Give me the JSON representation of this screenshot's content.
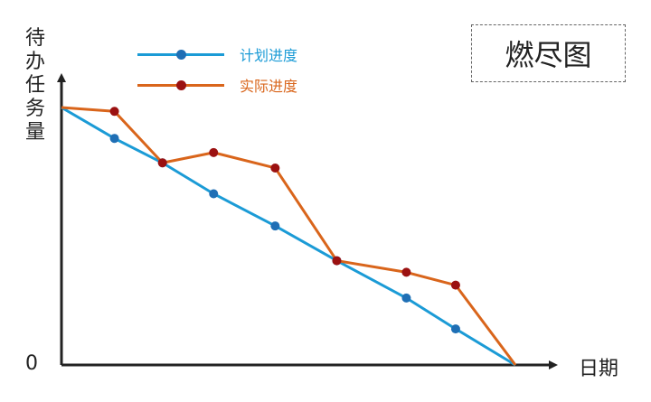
{
  "title": "燃尽图",
  "legend": [
    {
      "label": "计划进度",
      "color": "#1b9bd6"
    },
    {
      "label": "实际进度",
      "color": "#d9651b"
    }
  ],
  "chart_data": {
    "type": "line",
    "title": "燃尽图",
    "ylabel": "待办任务量",
    "xlabel": "日期",
    "y_tick_labels": [
      "0"
    ],
    "x": [
      0,
      1,
      2,
      3,
      4,
      5,
      6,
      7,
      8
    ],
    "xlim": [
      0,
      8
    ],
    "ylim": [
      0,
      100
    ],
    "grid": false,
    "legend_position": "top-left",
    "series": [
      {
        "name": "计划进度",
        "color": "#1b9bd6",
        "marker_color": "#1f6fb5",
        "points": [
          [
            0,
            100
          ],
          [
            0.86,
            88
          ],
          [
            1.64,
            78.5
          ],
          [
            2.47,
            66.5
          ],
          [
            3.47,
            54
          ],
          [
            4.47,
            40.5
          ],
          [
            5.6,
            26
          ],
          [
            6.4,
            14
          ],
          [
            7.37,
            0
          ]
        ]
      },
      {
        "name": "实际进度",
        "color": "#d9651b",
        "marker_color": "#9b1111",
        "points": [
          [
            0,
            100
          ],
          [
            0.86,
            98.5
          ],
          [
            1.64,
            78.5
          ],
          [
            2.47,
            82.5
          ],
          [
            3.47,
            76.5
          ],
          [
            4.47,
            40.5
          ],
          [
            5.6,
            36
          ],
          [
            6.4,
            31
          ],
          [
            7.37,
            0
          ]
        ]
      }
    ]
  }
}
